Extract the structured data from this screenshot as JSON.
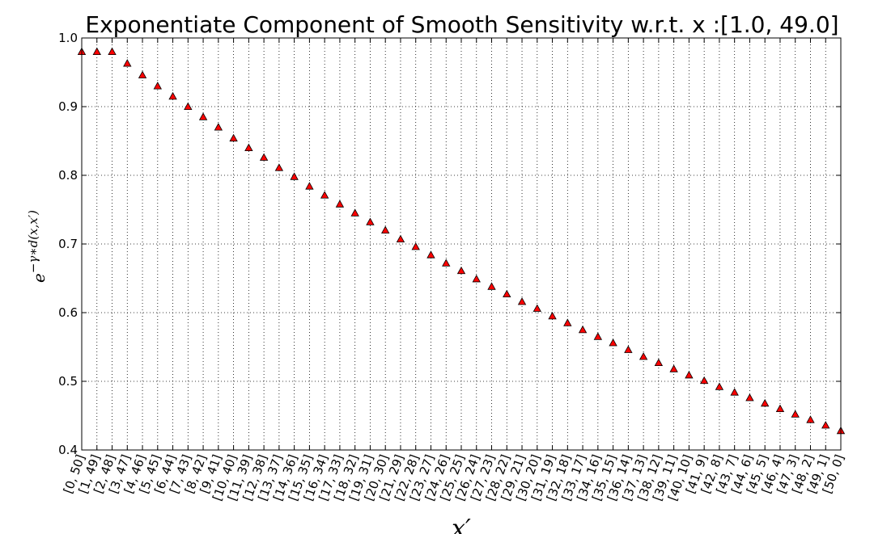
{
  "chart_data": {
    "type": "scatter",
    "title": "Exponentiate Component of Smooth Sensitivity w.r.t. x :[1.0, 49.0]",
    "xlabel": "x′",
    "ylabel_base": "e",
    "ylabel_exponent": "−γ∗d(x,x′)",
    "ylim": [
      0.4,
      1.0
    ],
    "yticks": [
      0.4,
      0.5,
      0.6,
      0.7,
      0.8,
      0.9,
      1.0
    ],
    "ytick_labels": [
      "0.4",
      "0.5",
      "0.6",
      "0.7",
      "0.8",
      "0.9",
      "1.0"
    ],
    "grid": true,
    "marker": "triangle",
    "marker_color": "#ff0000",
    "categories": [
      "[0, 50]",
      "[1, 49]",
      "[2, 48]",
      "[3, 47]",
      "[4, 46]",
      "[5, 45]",
      "[6, 44]",
      "[7, 43]",
      "[8, 42]",
      "[9, 41]",
      "[10, 40]",
      "[11, 39]",
      "[12, 38]",
      "[13, 37]",
      "[14, 36]",
      "[15, 35]",
      "[16, 34]",
      "[17, 33]",
      "[18, 32]",
      "[19, 31]",
      "[20, 30]",
      "[21, 29]",
      "[22, 28]",
      "[23, 27]",
      "[24, 26]",
      "[25, 25]",
      "[26, 24]",
      "[27, 23]",
      "[28, 22]",
      "[29, 21]",
      "[30, 20]",
      "[31, 19]",
      "[32, 18]",
      "[33, 17]",
      "[34, 16]",
      "[35, 15]",
      "[36, 14]",
      "[37, 13]",
      "[38, 12]",
      "[39, 11]",
      "[40, 10]",
      "[41, 9]",
      "[42, 8]",
      "[43, 7]",
      "[44, 6]",
      "[45, 5]",
      "[46, 4]",
      "[47, 3]",
      "[48, 2]",
      "[49, 1]",
      "[50, 0]"
    ],
    "values": [
      0.98,
      0.98,
      0.98,
      0.963,
      0.946,
      0.93,
      0.915,
      0.9,
      0.885,
      0.87,
      0.854,
      0.84,
      0.826,
      0.811,
      0.798,
      0.784,
      0.771,
      0.758,
      0.745,
      0.732,
      0.72,
      0.707,
      0.696,
      0.684,
      0.672,
      0.661,
      0.649,
      0.638,
      0.627,
      0.616,
      0.606,
      0.595,
      0.585,
      0.575,
      0.565,
      0.556,
      0.546,
      0.536,
      0.527,
      0.518,
      0.509,
      0.501,
      0.492,
      0.484,
      0.476,
      0.468,
      0.46,
      0.452,
      0.444,
      0.436,
      0.428
    ]
  }
}
